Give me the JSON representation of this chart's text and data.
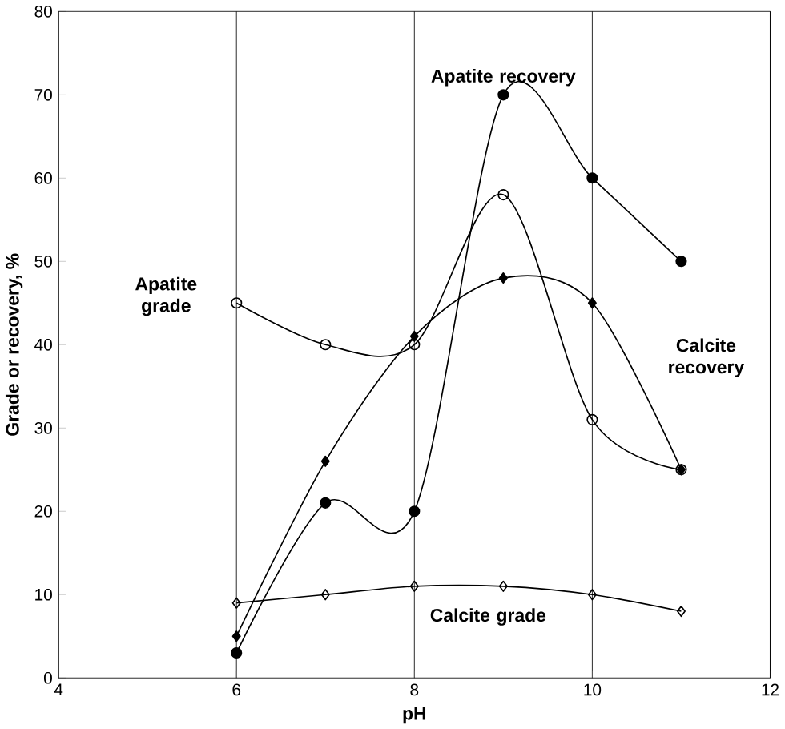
{
  "chart_data": {
    "type": "line",
    "xlabel": "pH",
    "ylabel": "Grade or recovery, %",
    "x": [
      6,
      7,
      8,
      9,
      10,
      11
    ],
    "series": [
      {
        "name": "Apatite recovery",
        "color": "#000000",
        "marker": "circle",
        "values": [
          3,
          21,
          20,
          70,
          60,
          50
        ]
      },
      {
        "name": "Apatite grade",
        "color": "#000000",
        "marker": "circle-open",
        "values": [
          45,
          40,
          40,
          58,
          31,
          25
        ]
      },
      {
        "name": "Calcite recovery",
        "color": "#000000",
        "marker": "diamond",
        "values": [
          5,
          26,
          41,
          48,
          45,
          25
        ]
      },
      {
        "name": "Calcite grade",
        "color": "#000000",
        "marker": "diamond-open",
        "values": [
          9,
          10,
          11,
          11,
          10,
          8
        ]
      }
    ],
    "xlim": [
      4,
      12
    ],
    "xticks": [
      4,
      6,
      8,
      10,
      12
    ],
    "ylim": [
      0,
      80
    ],
    "yticks": [
      0,
      10,
      20,
      30,
      40,
      50,
      60,
      70,
      80
    ],
    "grid": "x",
    "legend": false,
    "line_style": "solid"
  }
}
